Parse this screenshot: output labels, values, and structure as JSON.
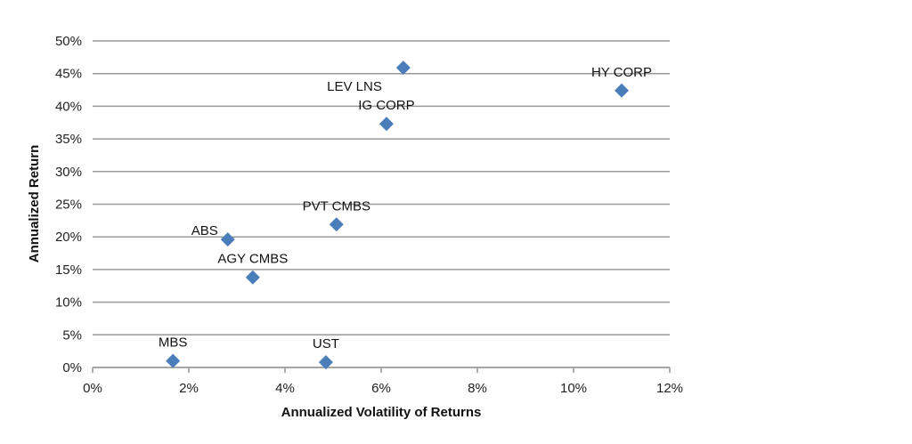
{
  "chart_data": {
    "type": "scatter",
    "title": "",
    "xlabel": "Annualized Volatility of Returns",
    "ylabel": "Annualized Return",
    "xlim": [
      0,
      12
    ],
    "ylim": [
      0,
      50
    ],
    "x_ticks": [
      0,
      2,
      4,
      6,
      8,
      10,
      12
    ],
    "y_ticks": [
      0,
      5,
      10,
      15,
      20,
      25,
      30,
      35,
      40,
      45,
      50
    ],
    "x_tick_labels": [
      "0%",
      "2%",
      "4%",
      "6%",
      "8%",
      "10%",
      "12%"
    ],
    "y_tick_labels": [
      "0%",
      "5%",
      "10%",
      "15%",
      "20%",
      "25%",
      "30%",
      "35%",
      "40%",
      "45%",
      "50%"
    ],
    "grid": "horizontal",
    "legend": "none",
    "marker_color": "#4a7ebb",
    "points": [
      {
        "label": "MBS",
        "x": 1.67,
        "y": 1.0,
        "label_pos": "above"
      },
      {
        "label": "ABS",
        "x": 2.81,
        "y": 19.6,
        "label_pos": "above-left"
      },
      {
        "label": "AGY CMBS",
        "x": 3.33,
        "y": 13.8,
        "label_pos": "above"
      },
      {
        "label": "UST",
        "x": 4.85,
        "y": 0.8,
        "label_pos": "above"
      },
      {
        "label": "PVT CMBS",
        "x": 5.07,
        "y": 21.9,
        "label_pos": "above"
      },
      {
        "label": "IG CORP",
        "x": 6.11,
        "y": 37.3,
        "label_pos": "above"
      },
      {
        "label": "LEV LNS",
        "x": 6.46,
        "y": 45.9,
        "label_pos": "below-left"
      },
      {
        "label": "HY CORP",
        "x": 11.0,
        "y": 42.4,
        "label_pos": "above"
      }
    ]
  }
}
